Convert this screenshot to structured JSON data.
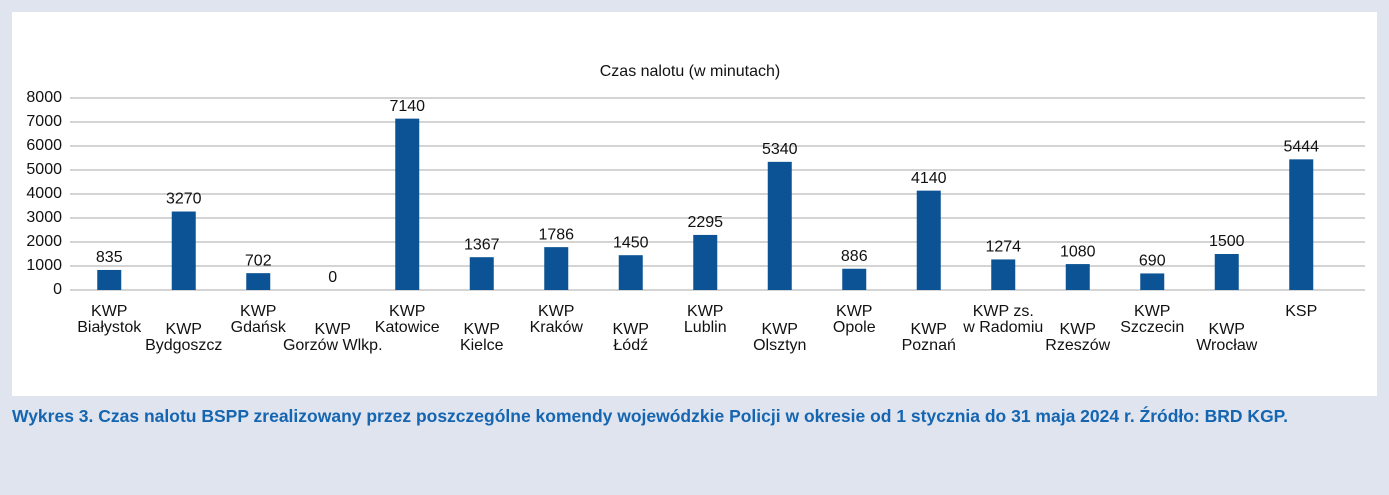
{
  "chart_data": {
    "type": "bar",
    "title": "Czas nalotu (w minutach)",
    "categories": [
      [
        "KWP",
        "Białystok"
      ],
      [
        "KWP",
        "Bydgoszcz"
      ],
      [
        "KWP",
        "Gdańsk"
      ],
      [
        "KWP",
        "Gorzów Wlkp."
      ],
      [
        "KWP",
        "Katowice"
      ],
      [
        "KWP",
        "Kielce"
      ],
      [
        "KWP",
        "Kraków"
      ],
      [
        "KWP",
        "Łódź"
      ],
      [
        "KWP",
        "Lublin"
      ],
      [
        "KWP",
        "Olsztyn"
      ],
      [
        "KWP",
        "Opole"
      ],
      [
        "KWP",
        "Poznań"
      ],
      [
        "KWP zs.",
        "w Radomiu"
      ],
      [
        "KWP",
        "Rzeszów"
      ],
      [
        "KWP",
        "Szczecin"
      ],
      [
        "KWP",
        "Wrocław"
      ],
      [
        "KSP"
      ]
    ],
    "values": [
      835,
      3270,
      702,
      0,
      7140,
      1367,
      1786,
      1450,
      2295,
      5340,
      886,
      4140,
      1274,
      1080,
      690,
      1500,
      5444
    ],
    "color": "#0b5394",
    "ylim": [
      0,
      8000
    ],
    "yticks": [
      0,
      1000,
      2000,
      3000,
      4000,
      5000,
      6000,
      7000,
      8000
    ],
    "grid": true
  },
  "caption": "Wykres 3. Czas nalotu BSPP zrealizowany przez poszczególne komendy wojewódzkie Policji w okresie od 1 stycznia do 31 maja 2024 r. Źródło: BRD KGP."
}
